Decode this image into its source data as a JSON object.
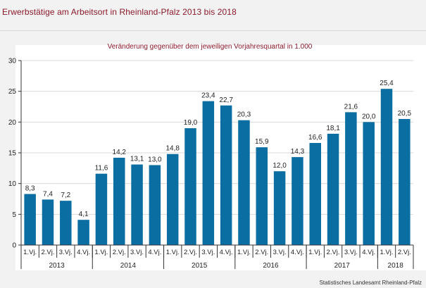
{
  "title": "Erwerbstätige am Arbeitsort in Rheinland-Pfalz 2013 bis 2018",
  "source": "Statistisches Landesamt Rheinland-Pfalz",
  "colors": {
    "bar": "#0a6ea3",
    "title": "#8b1a2b",
    "subtitle": "#8b1a2b",
    "plot_background": "#ffffff",
    "frame_background": "#f2f2f2",
    "axis": "#333333",
    "gridline": "#d9d9d9"
  },
  "chart_data": {
    "type": "bar",
    "title": "Veränderung gegenüber dem jeweiligen Vorjahresquartal in 1.000",
    "categories": [
      "1.Vj.",
      "2.Vj.",
      "3.Vj.",
      "4.Vj.",
      "1.Vj.",
      "2.Vj.",
      "3.Vj.",
      "4.Vj.",
      "1.Vj.",
      "2.Vj.",
      "3.Vj.",
      "4.Vj.",
      "1.Vj.",
      "2.Vj.",
      "3.Vj.",
      "4.Vj.",
      "1.Vj.",
      "2.Vj.",
      "3.Vj.",
      "4.Vj.",
      "1.Vj.",
      "2.Vj."
    ],
    "groups": [
      {
        "label": "2013",
        "count": 4
      },
      {
        "label": "2014",
        "count": 4
      },
      {
        "label": "2015",
        "count": 4
      },
      {
        "label": "2016",
        "count": 4
      },
      {
        "label": "2017",
        "count": 4
      },
      {
        "label": "2018",
        "count": 2
      }
    ],
    "values": [
      8.3,
      7.4,
      7.2,
      4.1,
      11.6,
      14.2,
      13.1,
      13.0,
      14.8,
      19.0,
      23.4,
      22.7,
      20.3,
      15.9,
      12.0,
      14.3,
      16.6,
      18.1,
      21.6,
      20.0,
      25.4,
      20.5
    ],
    "value_labels": [
      "8,3",
      "7,4",
      "7,2",
      "4,1",
      "11,6",
      "14,2",
      "13,1",
      "13,0",
      "14,8",
      "19,0",
      "23,4",
      "22,7",
      "20,3",
      "15,9",
      "12,0",
      "14,3",
      "16,6",
      "18,1",
      "21,6",
      "20,0",
      "25,4",
      "20,5"
    ],
    "ylim": [
      0,
      30
    ],
    "yticks": [
      0,
      5,
      10,
      15,
      20,
      25,
      30
    ],
    "grid": true,
    "xlabel": "",
    "ylabel": ""
  }
}
